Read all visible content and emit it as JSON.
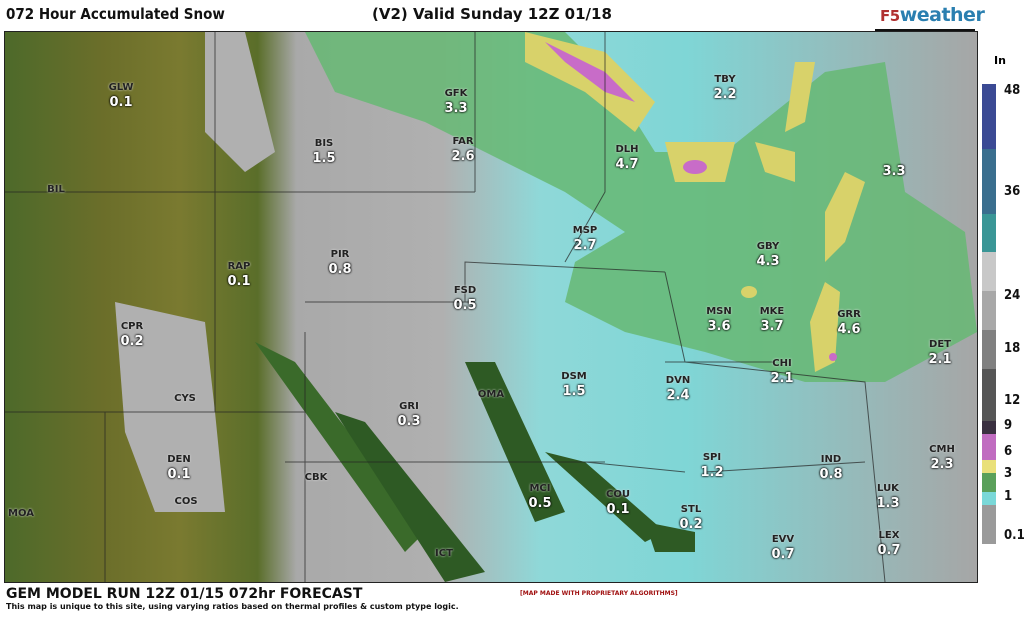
{
  "header": {
    "title": "072 Hour Accumulated Snow",
    "valid": "(V2) Valid Sunday 12Z 01/18",
    "logo": "F5weather",
    "logo_prefix": "F5",
    "logo_suffix": "weather"
  },
  "legend": {
    "unit": "In",
    "ticks": [
      "48",
      "36",
      "24",
      "18",
      "12",
      "9",
      "6",
      "3",
      "1",
      "0.1"
    ],
    "colors": [
      "#3b4a94",
      "#3a6e8e",
      "#3a9696",
      "#c8c8c8",
      "#a8a8a8",
      "#808080",
      "#565656",
      "#3a3040",
      "#c06cc0",
      "#e9e07a",
      "#5aa05a",
      "#7ad8d8",
      "#9a9a9a"
    ]
  },
  "stations": [
    {
      "name": "GLW",
      "value": "0.1"
    },
    {
      "name": "BIS",
      "value": "1.5"
    },
    {
      "name": "GFK",
      "value": "3.3"
    },
    {
      "name": "FAR",
      "value": "2.6"
    },
    {
      "name": "DLH",
      "value": "4.7"
    },
    {
      "name": "TBY",
      "value": "2.2"
    },
    {
      "name": "",
      "value": "3.3"
    },
    {
      "name": "BIL",
      "value": ""
    },
    {
      "name": "RAP",
      "value": "0.1"
    },
    {
      "name": "PIR",
      "value": "0.8"
    },
    {
      "name": "MSP",
      "value": "2.7"
    },
    {
      "name": "GBY",
      "value": "4.3"
    },
    {
      "name": "FSD",
      "value": "0.5"
    },
    {
      "name": "CPR",
      "value": "0.2"
    },
    {
      "name": "MSN",
      "value": "3.6"
    },
    {
      "name": "MKE",
      "value": "3.7"
    },
    {
      "name": "GRR",
      "value": "4.6"
    },
    {
      "name": "DET",
      "value": "2.1"
    },
    {
      "name": "CHI",
      "value": "2.1"
    },
    {
      "name": "DSM",
      "value": "1.5"
    },
    {
      "name": "DVN",
      "value": "2.4"
    },
    {
      "name": "OMA",
      "value": ""
    },
    {
      "name": "GRI",
      "value": "0.3"
    },
    {
      "name": "CYS",
      "value": ""
    },
    {
      "name": "DEN",
      "value": "0.1"
    },
    {
      "name": "IND",
      "value": "0.8"
    },
    {
      "name": "CMH",
      "value": "2.3"
    },
    {
      "name": "SPI",
      "value": "1.2"
    },
    {
      "name": "COS",
      "value": ""
    },
    {
      "name": "CBK",
      "value": ""
    },
    {
      "name": "MCI",
      "value": "0.5"
    },
    {
      "name": "COU",
      "value": "0.1"
    },
    {
      "name": "STL",
      "value": "0.2"
    },
    {
      "name": "LUK",
      "value": "1.3"
    },
    {
      "name": "MOA",
      "value": ""
    },
    {
      "name": "EVV",
      "value": "0.7"
    },
    {
      "name": "LEX",
      "value": "0.7"
    },
    {
      "name": "ICT",
      "value": ""
    }
  ],
  "footer": {
    "model_run": "GEM MODEL RUN 12Z 01/15 072hr FORECAST",
    "note": "This map is unique to this site, using varying ratios based on thermal profiles & custom ptype logic.",
    "badge": "[MAP MADE WITH PROPRIETARY ALGORITHMS]"
  }
}
